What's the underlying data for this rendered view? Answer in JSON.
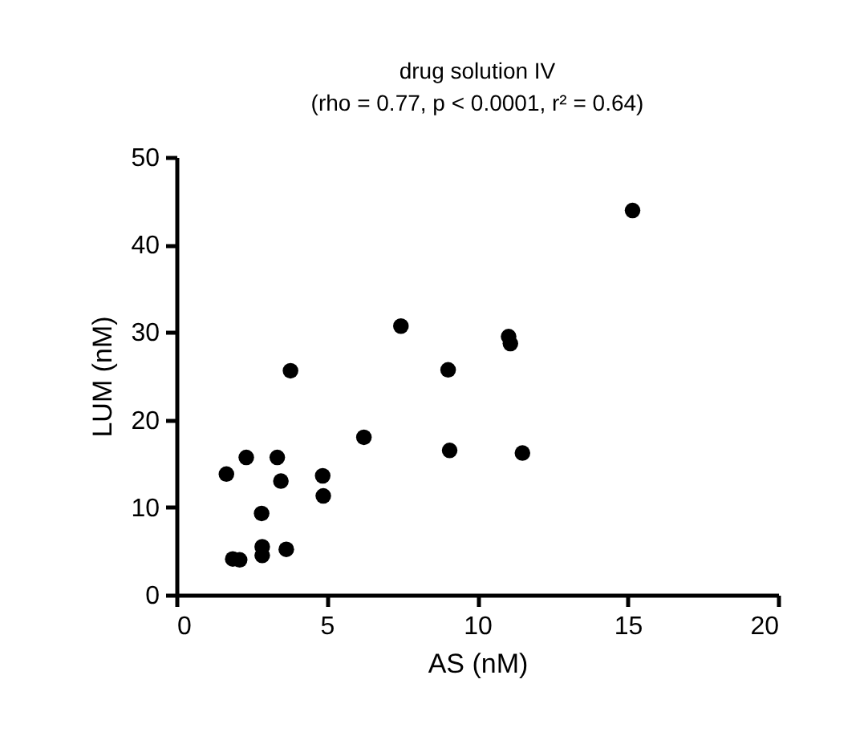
{
  "chart_data": {
    "type": "scatter",
    "title": "drug solution IV",
    "subtitle": "(rho = 0.77, p < 0.0001, r² = 0.64)",
    "xlabel": "AS (nM)",
    "ylabel": "LUM (nM)",
    "x": [
      1.66,
      2.32,
      1.87,
      2.1,
      2.83,
      2.85,
      2.85,
      3.35,
      3.47,
      3.65,
      3.79,
      4.86,
      4.88,
      6.23,
      7.46,
      9.03,
      9.08,
      11.04,
      11.1,
      11.5,
      15.16
    ],
    "series": [
      {
        "color": "#000000",
        "values": [
          13.8,
          15.7,
          4.1,
          4.0,
          9.3,
          5.5,
          4.5,
          15.7,
          13.0,
          5.2,
          25.6,
          13.6,
          11.3,
          18.0,
          30.7,
          25.7,
          16.5,
          29.5,
          28.7,
          16.2,
          43.9
        ]
      }
    ],
    "xlim": [
      0,
      20
    ],
    "xticks": [
      0,
      5,
      10,
      15,
      20
    ],
    "ylim": [
      0,
      50
    ],
    "yticks": [
      0,
      10,
      20,
      30,
      40,
      50
    ],
    "grid": false,
    "marker": "circle"
  }
}
